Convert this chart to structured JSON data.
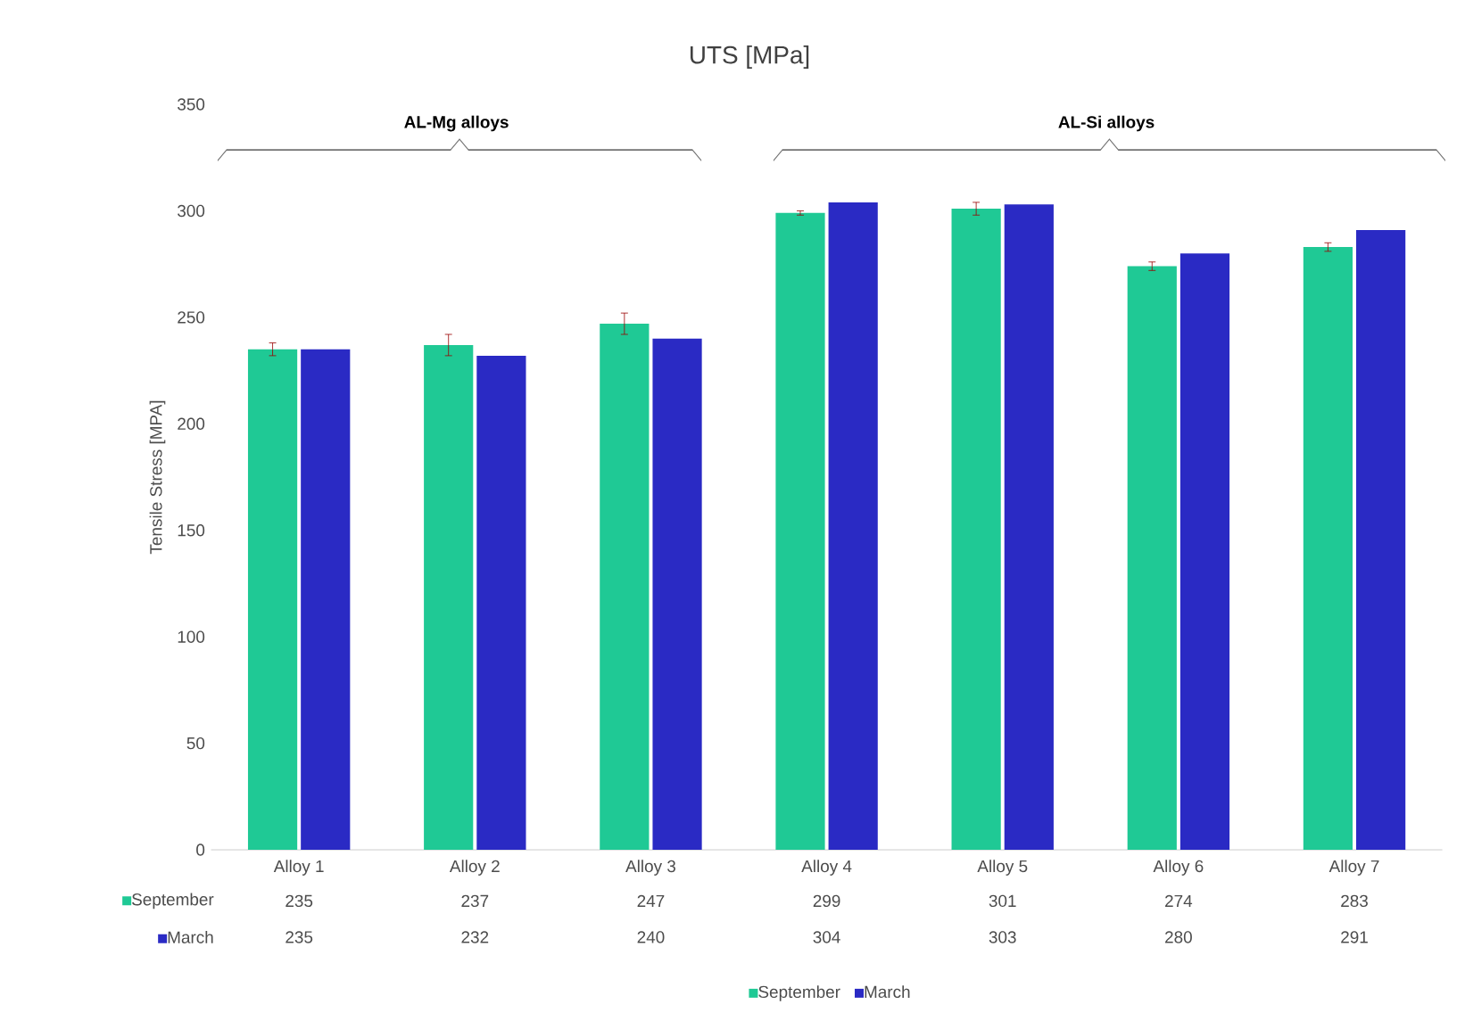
{
  "chart_data": {
    "type": "bar",
    "title": "UTS [MPa]",
    "ylabel": "Tensile Stress [MPA]",
    "categories": [
      "Alloy 1",
      "Alloy 2",
      "Alloy 3",
      "Alloy 4",
      "Alloy 5",
      "Alloy 6",
      "Alloy 7"
    ],
    "series": [
      {
        "name": "September",
        "color": "#1fc995",
        "values": [
          235,
          237,
          247,
          299,
          301,
          274,
          283
        ],
        "errors": [
          3,
          5,
          5,
          1,
          3,
          2,
          2
        ]
      },
      {
        "name": "March",
        "color": "#2a2ac4",
        "values": [
          235,
          232,
          240,
          304,
          303,
          280,
          291
        ]
      }
    ],
    "ylim": [
      0,
      350
    ],
    "yticks": [
      0,
      50,
      100,
      150,
      200,
      250,
      300,
      350
    ],
    "annotations": [
      "AL-Mg alloys",
      "AL-Si alloys"
    ],
    "data_labels": true,
    "legend": "bottom"
  }
}
